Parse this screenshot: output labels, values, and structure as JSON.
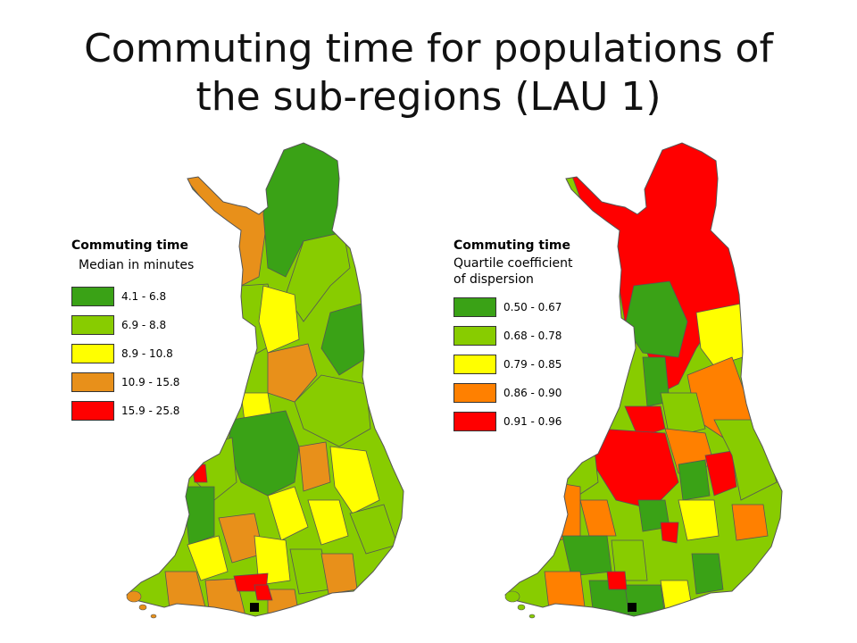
{
  "title": {
    "line1": "Commuting time for populations of",
    "line2": "the sub-regions (LAU 1)"
  },
  "colors": {
    "dark_green": "#3aa216",
    "light_green": "#88cc00",
    "yellow": "#ffff00",
    "orange": "#e8901a",
    "orange_right": "#ff8000",
    "red": "#ff0000",
    "border": "#555555"
  },
  "maps": [
    {
      "legend": {
        "heading": "Commuting time",
        "subtitle_lines": [
          "Median in minutes"
        ],
        "classes": [
          {
            "range": "4.1 - 6.8",
            "color": "#3aa216"
          },
          {
            "range": "6.9 - 8.8",
            "color": "#88cc00"
          },
          {
            "range": "8.9 - 10.8",
            "color": "#ffff00"
          },
          {
            "range": "10.9 - 15.8",
            "color": "#e8901a"
          },
          {
            "range": "15.9 - 25.8",
            "color": "#ff0000"
          }
        ]
      }
    },
    {
      "legend": {
        "heading": "Commuting time",
        "subtitle_lines": [
          "Quartile coefficient",
          "of dispersion"
        ],
        "classes": [
          {
            "range": "0.50 - 0.67",
            "color": "#3aa216"
          },
          {
            "range": "0.68 - 0.78",
            "color": "#88cc00"
          },
          {
            "range": "0.79 - 0.85",
            "color": "#ffff00"
          },
          {
            "range": "0.86 - 0.90",
            "color": "#ff8000"
          },
          {
            "range": "0.91 - 0.96",
            "color": "#ff0000"
          }
        ]
      }
    }
  ]
}
